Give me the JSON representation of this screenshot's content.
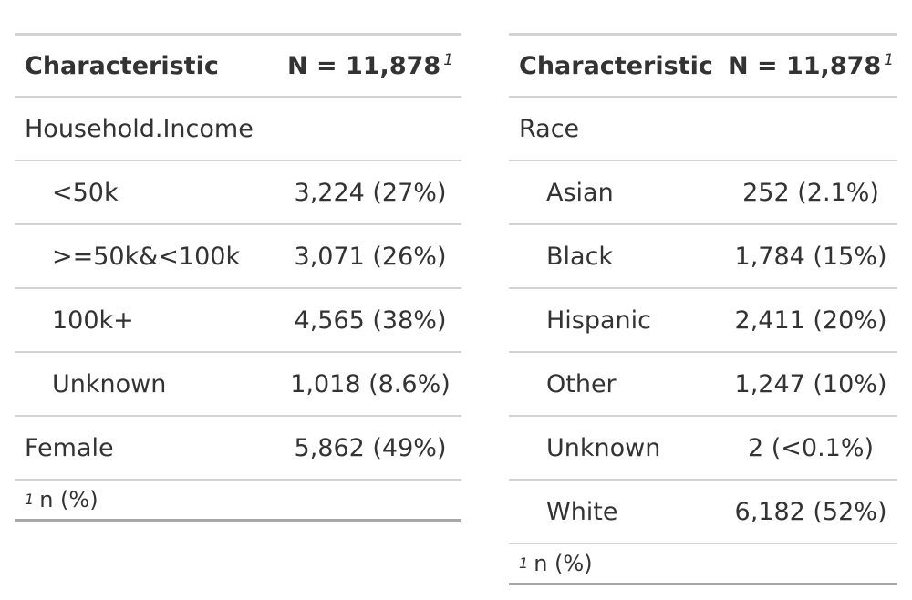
{
  "left_table": {
    "header": {
      "characteristic": "Characteristic",
      "n": "N = 11,878",
      "fn_mark": "1"
    },
    "rows": [
      {
        "label": "Household.Income",
        "value": ""
      },
      {
        "label": "<50k",
        "value": "3,224 (27%)"
      },
      {
        "label": ">=50k&<100k",
        "value": "3,071 (26%)"
      },
      {
        "label": "100k+",
        "value": "4,565 (38%)"
      },
      {
        "label": "Unknown",
        "value": "1,018 (8.6%)"
      },
      {
        "label": "Female",
        "value": "5,862 (49%)"
      }
    ],
    "footnote": {
      "mark": "1",
      "text": "n (%)"
    }
  },
  "right_table": {
    "header": {
      "characteristic": "Characteristic",
      "n": "N = 11,878",
      "fn_mark": "1"
    },
    "rows": [
      {
        "label": "Race",
        "value": ""
      },
      {
        "label": "Asian",
        "value": "252 (2.1%)"
      },
      {
        "label": "Black",
        "value": "1,784 (15%)"
      },
      {
        "label": "Hispanic",
        "value": "2,411 (20%)"
      },
      {
        "label": "Other",
        "value": "1,247 (10%)"
      },
      {
        "label": "Unknown",
        "value": "2 (<0.1%)"
      },
      {
        "label": "White",
        "value": "6,182 (52%)"
      }
    ],
    "footnote": {
      "mark": "1",
      "text": "n (%)"
    }
  }
}
